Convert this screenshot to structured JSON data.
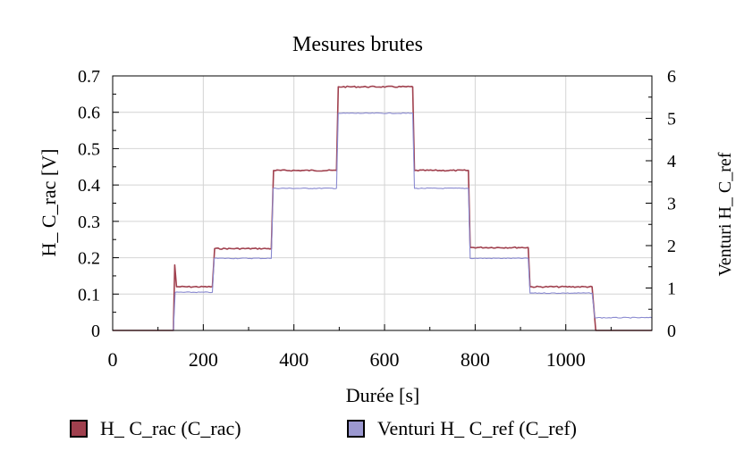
{
  "chart_data": {
    "type": "line",
    "title": "Mesures brutes",
    "xlabel": "Durée [s]",
    "ylabel": "H_ C_rac [V]",
    "y2label": "Venturi H_ C_ref",
    "xlim": [
      0,
      1190
    ],
    "ylim": [
      0,
      0.7
    ],
    "y2lim": [
      0,
      6
    ],
    "x_ticks": [
      0,
      200,
      400,
      600,
      800,
      1000
    ],
    "y_ticks": [
      "0",
      "0.1",
      "0.2",
      "0.3",
      "0.4",
      "0.5",
      "0.6",
      "0.7"
    ],
    "y2_ticks": [
      "0",
      "1",
      "2",
      "3",
      "4",
      "5",
      "6"
    ],
    "grid": true,
    "legend_position": "bottom",
    "series": [
      {
        "name": "H_ C_rac (C_rac)",
        "axis": "left",
        "color": "#a0404e",
        "points": [
          [
            0,
            0
          ],
          [
            134,
            0
          ],
          [
            137,
            0.18
          ],
          [
            141,
            0.12
          ],
          [
            220,
            0.12
          ],
          [
            225,
            0.225
          ],
          [
            350,
            0.225
          ],
          [
            355,
            0.44
          ],
          [
            494,
            0.44
          ],
          [
            498,
            0.67
          ],
          [
            662,
            0.67
          ],
          [
            666,
            0.44
          ],
          [
            785,
            0.44
          ],
          [
            789,
            0.228
          ],
          [
            917,
            0.228
          ],
          [
            921,
            0.12
          ],
          [
            1058,
            0.12
          ],
          [
            1066,
            0
          ],
          [
            1190,
            0
          ]
        ]
      },
      {
        "name": "Venturi H_ C_ref (C_ref)",
        "axis": "right",
        "color": "#8a8ad0",
        "points": [
          [
            0,
            0
          ],
          [
            134,
            0
          ],
          [
            138,
            0.9
          ],
          [
            220,
            0.9
          ],
          [
            224,
            1.7
          ],
          [
            350,
            1.7
          ],
          [
            354,
            3.35
          ],
          [
            494,
            3.35
          ],
          [
            498,
            5.12
          ],
          [
            662,
            5.12
          ],
          [
            666,
            3.35
          ],
          [
            785,
            3.35
          ],
          [
            789,
            1.7
          ],
          [
            917,
            1.7
          ],
          [
            921,
            0.88
          ],
          [
            1058,
            0.88
          ],
          [
            1064,
            0.3
          ],
          [
            1190,
            0.3
          ]
        ]
      }
    ]
  },
  "legend": {
    "items": [
      {
        "label": "H_ C_rac (C_rac)",
        "color": "#a0404e"
      },
      {
        "label": "Venturi H_ C_ref (C_ref)",
        "color": "#9b98d0"
      }
    ]
  }
}
